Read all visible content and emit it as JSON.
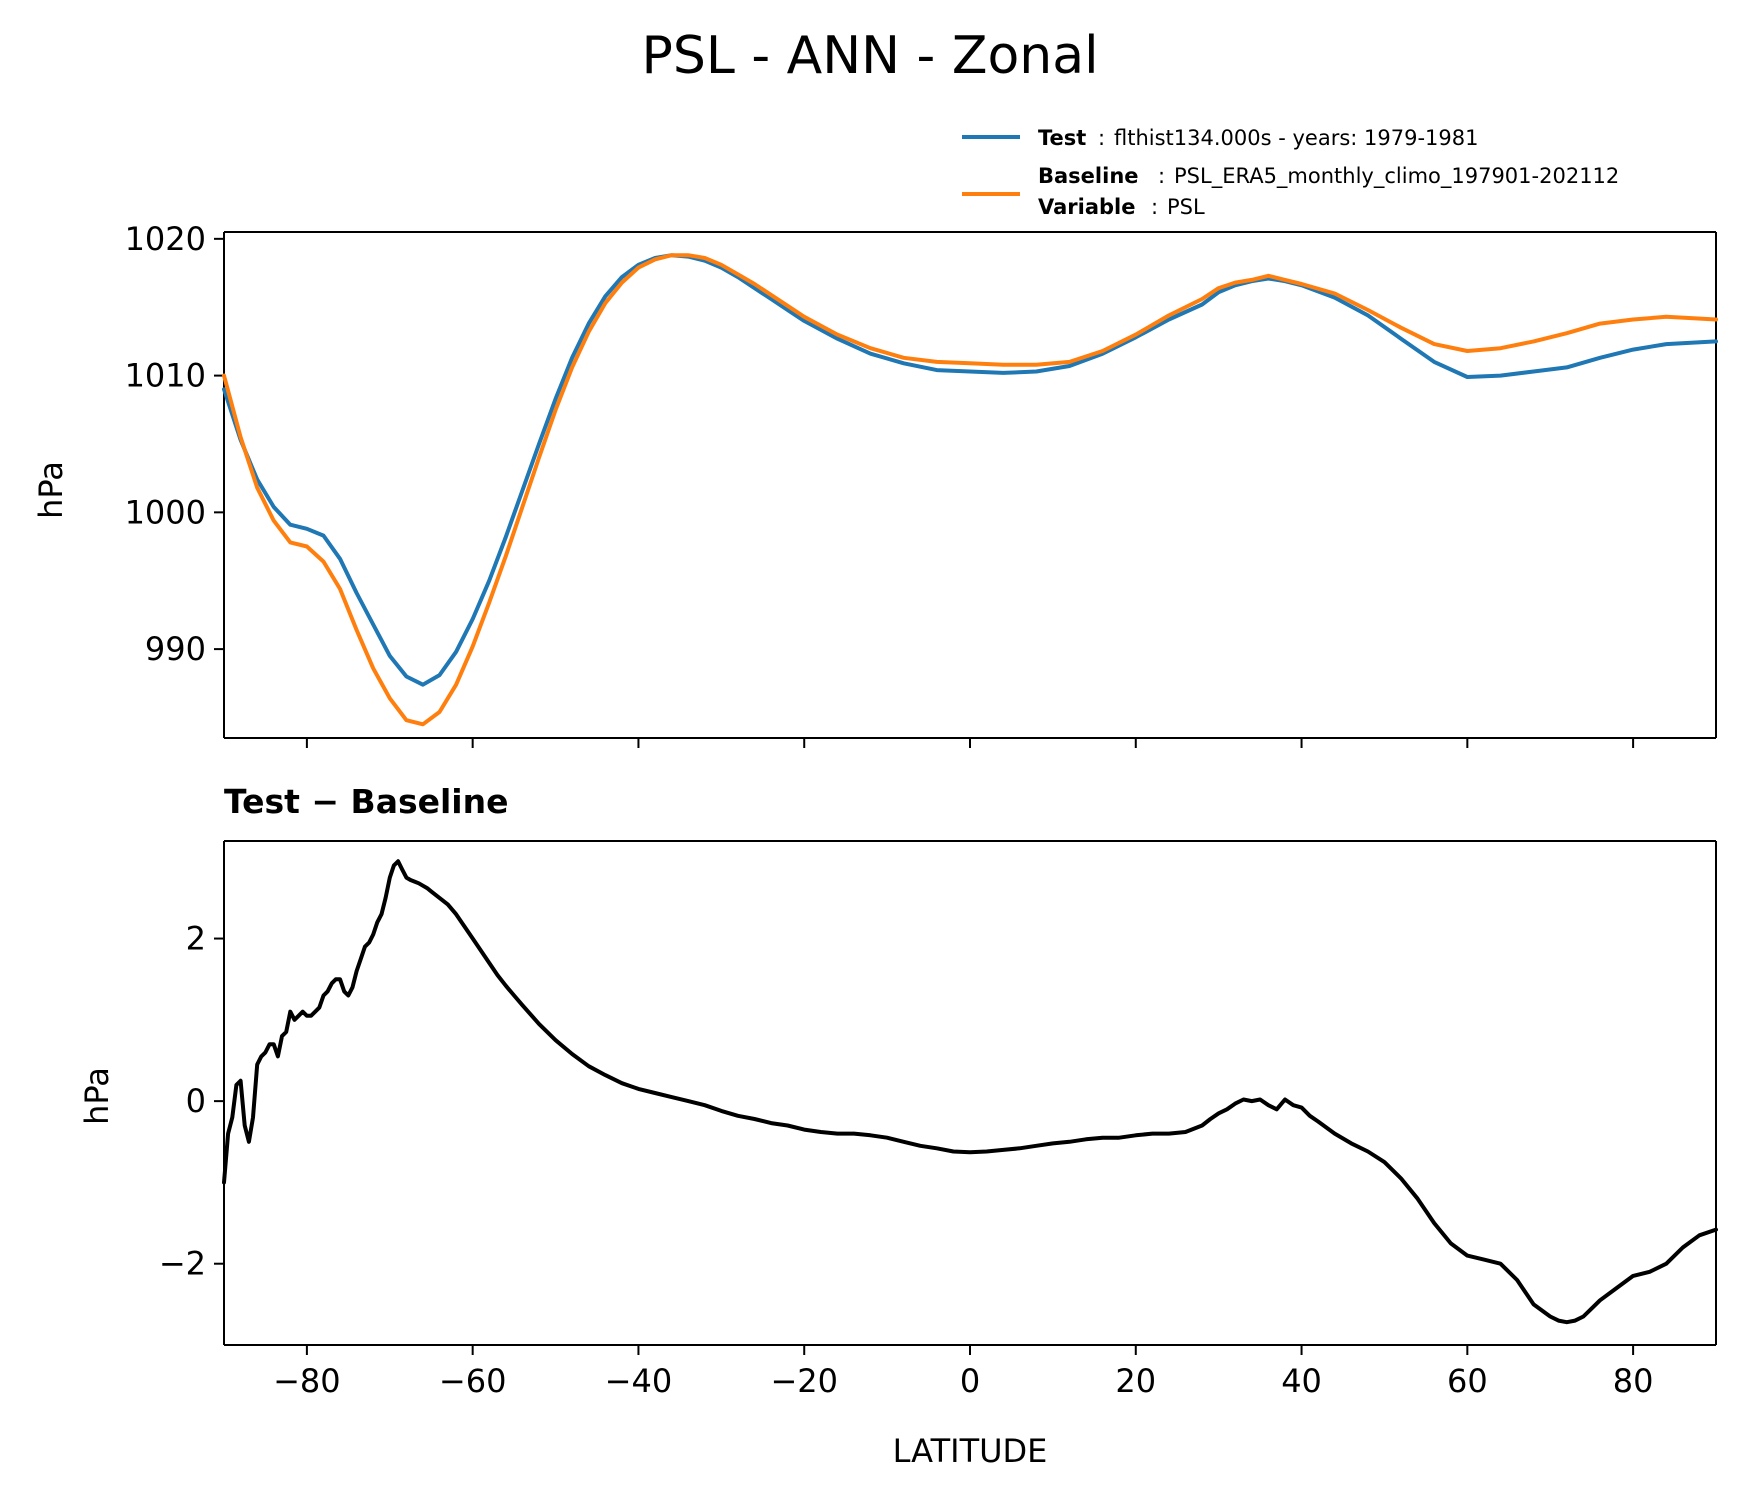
{
  "figure": {
    "title": "PSL - ANN - Zonal"
  },
  "legend": {
    "test": {
      "key": "Test",
      "text": "flthist134.000s - years: 1979-1981",
      "color": "#1f77b4"
    },
    "baseline": {
      "key": "Baseline",
      "text": "PSL_ERA5_monthly_climo_197901-202112",
      "color": "#ff7f0e"
    },
    "variable": {
      "key": "Variable",
      "text": "PSL"
    }
  },
  "chart_data": [
    {
      "type": "line",
      "title": "",
      "xlabel": "",
      "ylabel": "hPa",
      "xlim": [
        -90,
        90
      ],
      "ylim": [
        983.5,
        1020.5
      ],
      "xticks": [
        -80,
        -60,
        -40,
        -20,
        0,
        20,
        40,
        60,
        80
      ],
      "show_xtick_labels": false,
      "yticks": [
        990,
        1000,
        1010,
        1020
      ],
      "ytick_labels": [
        "990",
        "1000",
        "1010",
        "1020"
      ],
      "series": [
        {
          "name": "Test",
          "color": "#1f77b4",
          "x": [
            -90,
            -88,
            -86,
            -84,
            -82,
            -80,
            -78,
            -76,
            -74,
            -72,
            -70,
            -68,
            -66,
            -64,
            -62,
            -60,
            -58,
            -56,
            -54,
            -52,
            -50,
            -48,
            -46,
            -44,
            -42,
            -40,
            -38,
            -36,
            -34,
            -32,
            -30,
            -28,
            -26,
            -24,
            -22,
            -20,
            -16,
            -12,
            -8,
            -4,
            0,
            4,
            8,
            12,
            16,
            20,
            24,
            28,
            30,
            32,
            34,
            36,
            38,
            40,
            44,
            48,
            52,
            56,
            60,
            64,
            68,
            72,
            76,
            80,
            84,
            90
          ],
          "values": [
            1009.0,
            1005.3,
            1002.4,
            1000.4,
            999.1,
            998.8,
            998.3,
            996.6,
            994.1,
            991.8,
            989.5,
            988.0,
            987.4,
            988.1,
            989.8,
            992.2,
            995.0,
            998.2,
            1001.6,
            1005.0,
            1008.3,
            1011.3,
            1013.8,
            1015.8,
            1017.2,
            1018.1,
            1018.6,
            1018.8,
            1018.7,
            1018.4,
            1017.9,
            1017.2,
            1016.4,
            1015.6,
            1014.8,
            1014.0,
            1012.7,
            1011.6,
            1010.9,
            1010.4,
            1010.3,
            1010.2,
            1010.3,
            1010.7,
            1011.6,
            1012.8,
            1014.1,
            1015.2,
            1016.1,
            1016.6,
            1016.9,
            1017.1,
            1016.9,
            1016.6,
            1015.7,
            1014.4,
            1012.7,
            1011.0,
            1009.9,
            1010.0,
            1010.3,
            1010.6,
            1011.3,
            1011.9,
            1012.3,
            1012.5
          ]
        },
        {
          "name": "Baseline",
          "color": "#ff7f0e",
          "x": [
            -90,
            -88,
            -86,
            -84,
            -82,
            -80,
            -78,
            -76,
            -74,
            -72,
            -70,
            -68,
            -66,
            -64,
            -62,
            -60,
            -58,
            -56,
            -54,
            -52,
            -50,
            -48,
            -46,
            -44,
            -42,
            -40,
            -38,
            -36,
            -34,
            -32,
            -30,
            -28,
            -26,
            -24,
            -22,
            -20,
            -16,
            -12,
            -8,
            -4,
            0,
            4,
            8,
            12,
            16,
            20,
            24,
            28,
            30,
            32,
            34,
            36,
            38,
            40,
            44,
            48,
            52,
            56,
            60,
            64,
            68,
            72,
            76,
            80,
            84,
            90
          ],
          "values": [
            1010.0,
            1005.5,
            1001.8,
            999.4,
            997.8,
            997.5,
            996.4,
            994.4,
            991.4,
            988.6,
            986.4,
            984.8,
            984.5,
            985.4,
            987.4,
            990.2,
            993.4,
            996.8,
            1000.4,
            1004.0,
            1007.5,
            1010.6,
            1013.2,
            1015.3,
            1016.8,
            1017.9,
            1018.5,
            1018.8,
            1018.8,
            1018.6,
            1018.1,
            1017.4,
            1016.7,
            1015.9,
            1015.1,
            1014.3,
            1013.0,
            1012.0,
            1011.3,
            1011.0,
            1010.9,
            1010.8,
            1010.8,
            1011.0,
            1011.8,
            1013.0,
            1014.4,
            1015.6,
            1016.4,
            1016.8,
            1017.0,
            1017.3,
            1017.0,
            1016.7,
            1016.0,
            1014.8,
            1013.5,
            1012.3,
            1011.8,
            1012.0,
            1012.5,
            1013.1,
            1013.8,
            1014.1,
            1014.3,
            1014.1
          ]
        }
      ]
    },
    {
      "type": "line",
      "title": "Test − Baseline",
      "xlabel": "LATITUDE",
      "ylabel": "hPa",
      "xlim": [
        -90,
        90
      ],
      "ylim": [
        -3.0,
        3.2
      ],
      "xticks": [
        -80,
        -60,
        -40,
        -20,
        0,
        20,
        40,
        60,
        80
      ],
      "xtick_labels": [
        "−80",
        "−60",
        "−40",
        "−20",
        "0",
        "20",
        "40",
        "60",
        "80"
      ],
      "yticks": [
        -2,
        0,
        2
      ],
      "ytick_labels": [
        "−2",
        "0",
        "2"
      ],
      "series": [
        {
          "name": "Test − Baseline",
          "color": "#000000",
          "x": [
            -90,
            -89.5,
            -89,
            -88.5,
            -88,
            -87.5,
            -87,
            -86.5,
            -86,
            -85.5,
            -85,
            -84.5,
            -84,
            -83.5,
            -83,
            -82.5,
            -82,
            -81.5,
            -81,
            -80.5,
            -80,
            -79.5,
            -79,
            -78.5,
            -78,
            -77.5,
            -77,
            -76.5,
            -76,
            -75.5,
            -75,
            -74.5,
            -74,
            -73.5,
            -73,
            -72.5,
            -72,
            -71.5,
            -71,
            -70.5,
            -70,
            -69.5,
            -69,
            -68.5,
            -68,
            -67.5,
            -67,
            -66.5,
            -66,
            -65.5,
            -65,
            -64,
            -63,
            -62,
            -61,
            -60,
            -59,
            -58,
            -57,
            -56,
            -55,
            -54,
            -52,
            -50,
            -48,
            -46,
            -44,
            -42,
            -40,
            -38,
            -36,
            -34,
            -32,
            -30,
            -28,
            -26,
            -24,
            -22,
            -20,
            -18,
            -16,
            -14,
            -12,
            -10,
            -8,
            -6,
            -4,
            -2,
            0,
            2,
            4,
            6,
            8,
            10,
            12,
            14,
            16,
            18,
            20,
            22,
            24,
            26,
            28,
            29,
            30,
            31,
            32,
            33,
            34,
            35,
            36,
            37,
            38,
            39,
            40,
            41,
            42,
            44,
            46,
            48,
            50,
            52,
            54,
            56,
            58,
            60,
            62,
            64,
            66,
            68,
            70,
            71,
            72,
            73,
            74,
            75,
            76,
            78,
            80,
            82,
            84,
            86,
            88,
            90
          ],
          "values": [
            -1.0,
            -0.4,
            -0.2,
            0.2,
            0.25,
            -0.3,
            -0.5,
            -0.2,
            0.45,
            0.55,
            0.6,
            0.7,
            0.7,
            0.55,
            0.8,
            0.85,
            1.1,
            1.0,
            1.05,
            1.1,
            1.05,
            1.05,
            1.1,
            1.15,
            1.3,
            1.35,
            1.45,
            1.5,
            1.5,
            1.35,
            1.3,
            1.4,
            1.6,
            1.75,
            1.9,
            1.95,
            2.05,
            2.2,
            2.3,
            2.5,
            2.75,
            2.9,
            2.95,
            2.85,
            2.75,
            2.72,
            2.7,
            2.68,
            2.65,
            2.62,
            2.58,
            2.5,
            2.42,
            2.3,
            2.15,
            2.0,
            1.85,
            1.7,
            1.55,
            1.42,
            1.3,
            1.18,
            0.95,
            0.75,
            0.58,
            0.43,
            0.32,
            0.22,
            0.15,
            0.1,
            0.05,
            0.0,
            -0.05,
            -0.12,
            -0.18,
            -0.22,
            -0.27,
            -0.3,
            -0.35,
            -0.38,
            -0.4,
            -0.4,
            -0.42,
            -0.45,
            -0.5,
            -0.55,
            -0.58,
            -0.62,
            -0.63,
            -0.62,
            -0.6,
            -0.58,
            -0.55,
            -0.52,
            -0.5,
            -0.47,
            -0.45,
            -0.45,
            -0.42,
            -0.4,
            -0.4,
            -0.38,
            -0.3,
            -0.22,
            -0.15,
            -0.1,
            -0.03,
            0.02,
            0.0,
            0.02,
            -0.05,
            -0.1,
            0.02,
            -0.05,
            -0.08,
            -0.18,
            -0.25,
            -0.4,
            -0.52,
            -0.62,
            -0.75,
            -0.95,
            -1.2,
            -1.5,
            -1.75,
            -1.9,
            -1.95,
            -2.0,
            -2.2,
            -2.5,
            -2.65,
            -2.7,
            -2.72,
            -2.7,
            -2.65,
            -2.55,
            -2.45,
            -2.3,
            -2.15,
            -2.1,
            -2.0,
            -1.8,
            -1.65,
            -1.58
          ]
        }
      ]
    }
  ]
}
